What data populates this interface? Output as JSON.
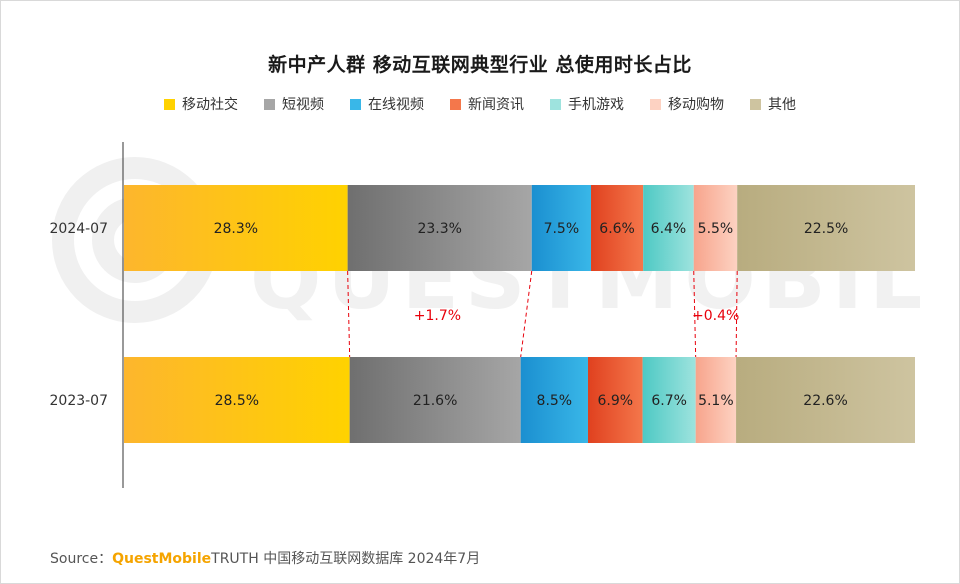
{
  "chart_data": {
    "type": "bar",
    "orientation": "horizontal",
    "stacked": true,
    "title": "新中产人群 移动互联网典型行业 总使用时长占比",
    "categories": [
      "2024-07",
      "2023-07"
    ],
    "series": [
      {
        "name": "移动社交",
        "values": [
          28.3,
          28.5
        ],
        "labels": [
          "28.3%",
          "28.5%"
        ],
        "color_from": "#fdb62d",
        "color_to": "#ffd200"
      },
      {
        "name": "短视频",
        "values": [
          23.3,
          21.6
        ],
        "labels": [
          "23.3%",
          "21.6%"
        ],
        "color_from": "#6f6f6f",
        "color_to": "#a6a6a6"
      },
      {
        "name": "在线视频",
        "values": [
          7.5,
          8.5
        ],
        "labels": [
          "7.5%",
          "8.5%"
        ],
        "color_from": "#1b8fd0",
        "color_to": "#39b7e8"
      },
      {
        "name": "新闻资讯",
        "values": [
          6.6,
          6.9
        ],
        "labels": [
          "6.6%",
          "6.9%"
        ],
        "color_from": "#e0411f",
        "color_to": "#f4774b"
      },
      {
        "name": "手机游戏",
        "values": [
          6.4,
          6.7
        ],
        "labels": [
          "6.4%",
          "6.7%"
        ],
        "color_from": "#4ec9c4",
        "color_to": "#9ee3de"
      },
      {
        "name": "移动购物",
        "values": [
          5.5,
          5.1
        ],
        "labels": [
          "5.5%",
          "5.1%"
        ],
        "color_from": "#f7a48c",
        "color_to": "#fdd2c2"
      },
      {
        "name": "其他",
        "values": [
          22.5,
          22.6
        ],
        "labels": [
          "22.5%",
          "22.6%"
        ],
        "color_from": "#b8ac7f",
        "color_to": "#cec4a0"
      }
    ],
    "annotations": [
      {
        "text": "+1.7%",
        "between_series": 1,
        "color": "#e8000b"
      },
      {
        "text": "+0.4%",
        "between_series": 5,
        "color": "#e8000b"
      }
    ],
    "xlim": [
      0,
      100
    ]
  },
  "watermark": "QUESTMOBILE",
  "source": {
    "prefix": "Source：",
    "brand": "QuestMobile",
    "rest": " TRUTH 中国移动互联网数据库 2024年7月"
  }
}
